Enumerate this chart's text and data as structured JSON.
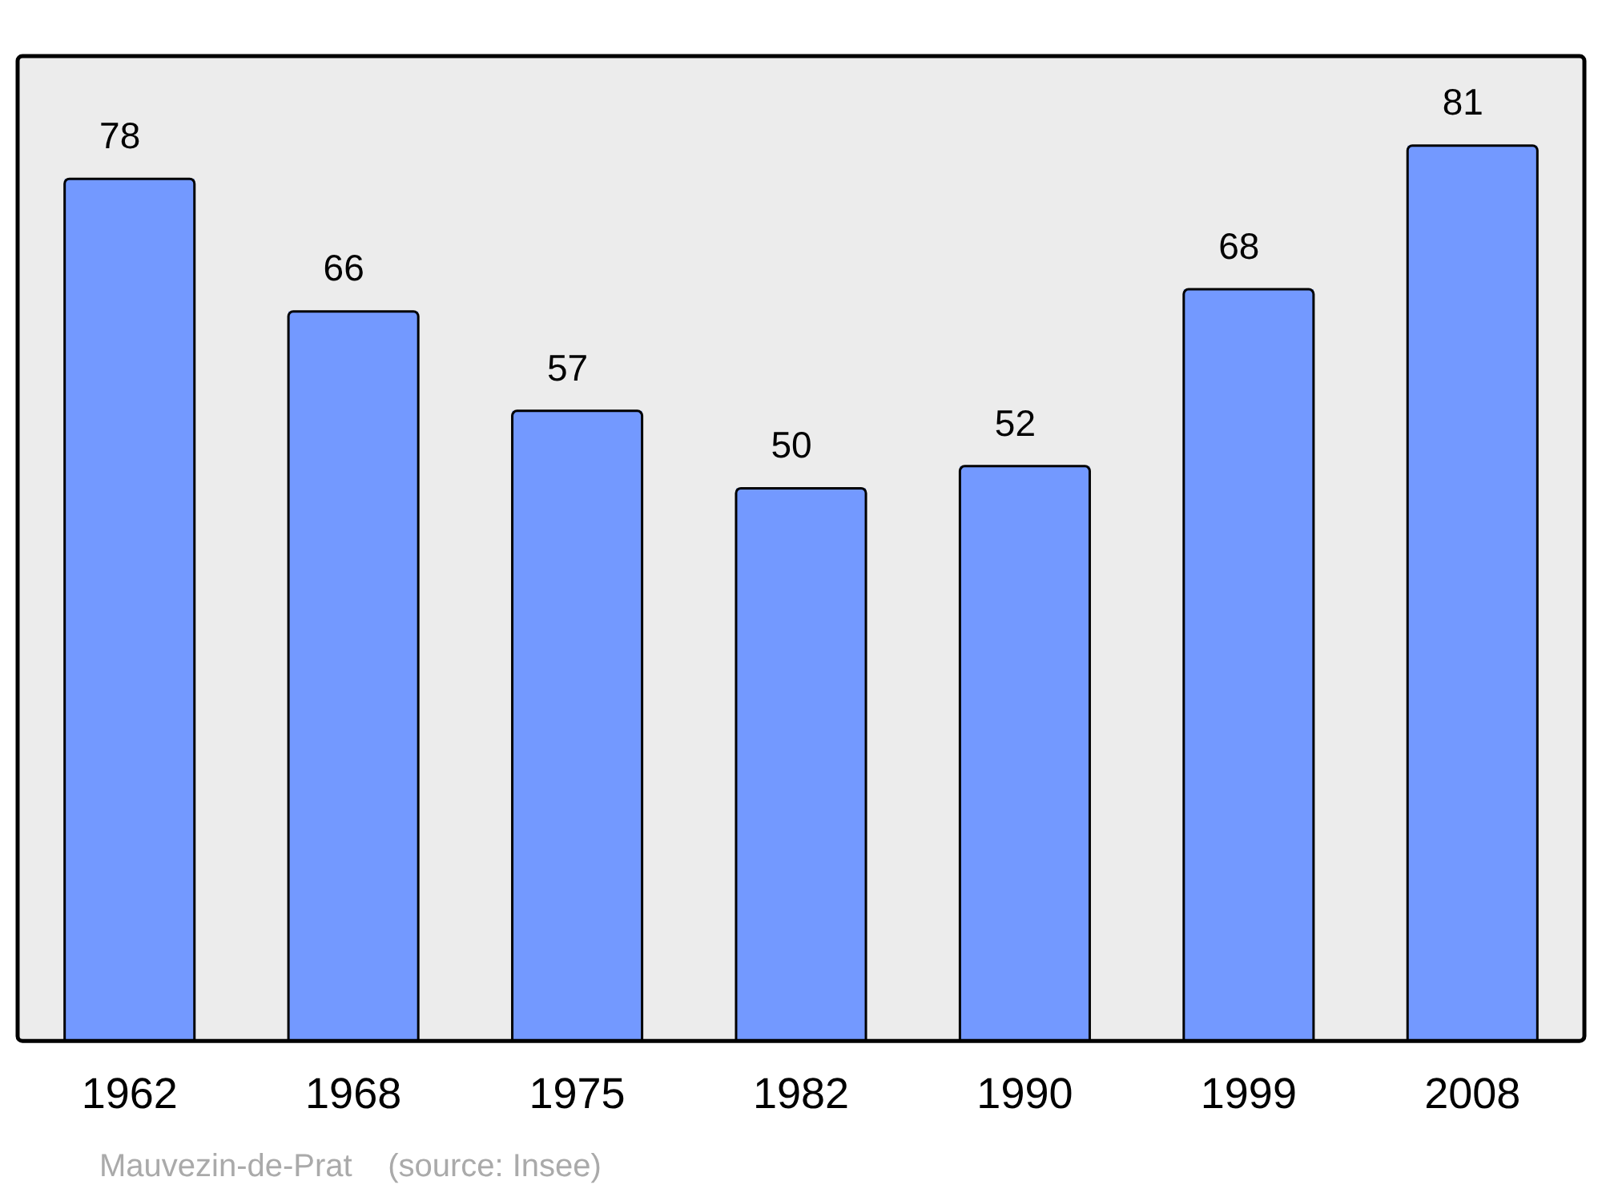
{
  "chart_data": {
    "type": "bar",
    "categories": [
      "1962",
      "1968",
      "1975",
      "1982",
      "1990",
      "1999",
      "2008"
    ],
    "values": [
      78,
      66,
      57,
      50,
      52,
      68,
      81
    ],
    "color": "#7399ff",
    "data_labels": true,
    "annotations": [
      "Mauvezin-de-Prat    (source: Insee)"
    ]
  }
}
